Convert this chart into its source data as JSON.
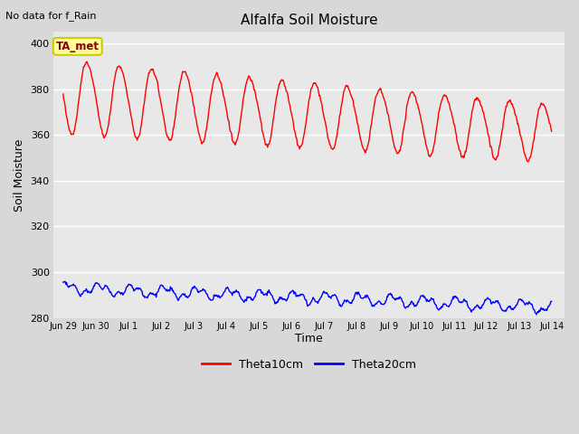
{
  "title": "Alfalfa Soil Moisture",
  "subtitle": "No data for f_Rain",
  "ylabel": "Soil Moisture",
  "xlabel": "Time",
  "ylim": [
    280,
    405
  ],
  "yticks": [
    280,
    300,
    320,
    340,
    360,
    380,
    400
  ],
  "fig_bg_color": "#d8d8d8",
  "plot_bg_color": "#e8e8e8",
  "line1_color": "#ff0000",
  "line2_color": "#0000ff",
  "legend_label1": "Theta10cm",
  "legend_label2": "Theta20cm",
  "ta_met_label": "TA_met",
  "ta_met_bg": "#ffff99",
  "ta_met_border": "#cccc00",
  "tick_labels": [
    "Jun 29",
    "Jun 30",
    "Jul 1",
    "Jul 2",
    "Jul 3",
    "Jul 4",
    "Jul 5",
    "Jul 6",
    "Jul 7",
    "Jul 8",
    "Jul 9",
    "Jul 10",
    "Jul 11",
    "Jul 12",
    "Jul 13",
    "Jul 14"
  ],
  "tick_positions": [
    0,
    1,
    2,
    3,
    4,
    5,
    6,
    7,
    8,
    9,
    10,
    11,
    12,
    13,
    14,
    15
  ]
}
